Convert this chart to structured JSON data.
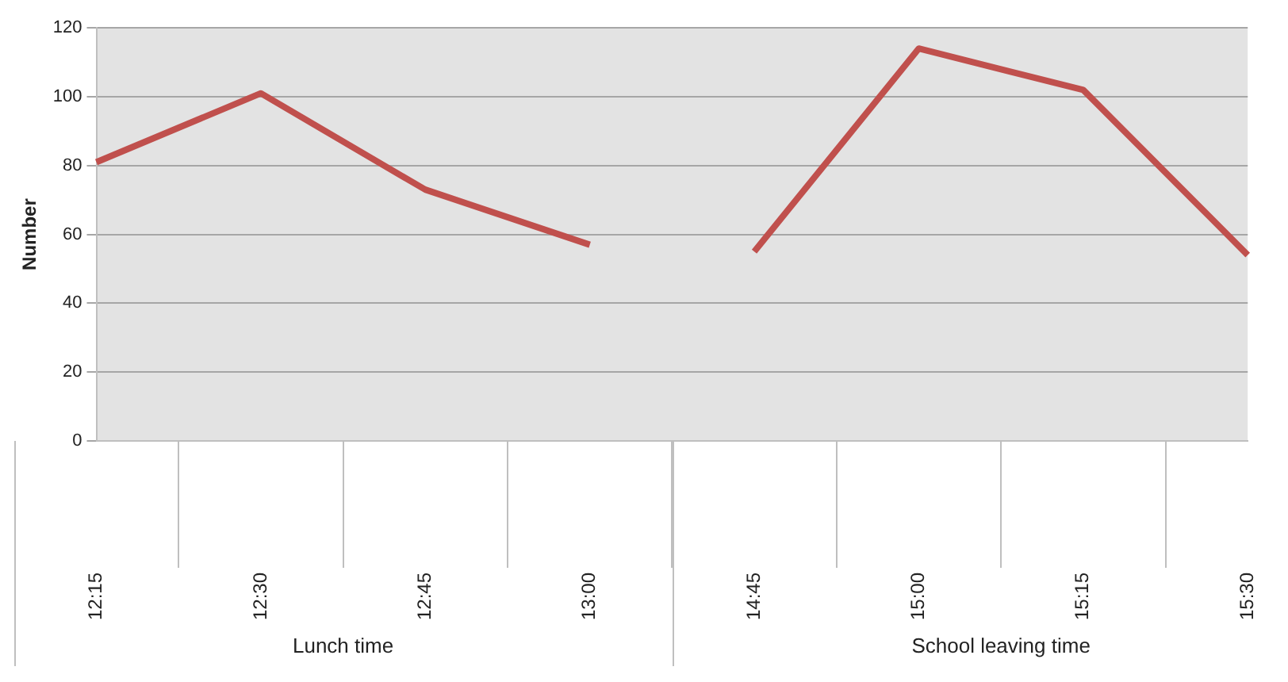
{
  "chart_data": {
    "type": "line",
    "ylabel": "Number",
    "categories": [
      "12:15",
      "12:30",
      "12:45",
      "13:00",
      "14:45",
      "15:00",
      "15:15",
      "15:30"
    ],
    "series": [
      {
        "color": "#c0504d",
        "values": [
          81,
          101,
          73,
          57,
          null,
          null,
          null,
          null
        ]
      },
      {
        "color": "#c0504d",
        "values": [
          null,
          null,
          null,
          null,
          55,
          114,
          102,
          54
        ]
      }
    ],
    "ylim": [
      0,
      120
    ],
    "yticks": [
      0,
      20,
      40,
      60,
      80,
      100,
      120
    ],
    "grid": "y",
    "legend": false,
    "marker": "none",
    "annotations": [
      "Lunch time",
      "School leaving time"
    ]
  }
}
